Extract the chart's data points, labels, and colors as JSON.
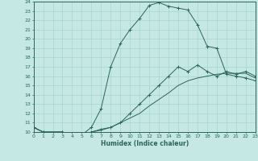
{
  "xlabel": "Humidex (Indice chaleur)",
  "bg_color": "#c5e8e5",
  "line_color": "#2a6655",
  "grid_color": "#a8d4d0",
  "xlim": [
    0,
    23
  ],
  "ylim": [
    10,
    24
  ],
  "xticks": [
    0,
    1,
    2,
    3,
    4,
    5,
    6,
    7,
    8,
    9,
    10,
    11,
    12,
    13,
    14,
    15,
    16,
    17,
    18,
    19,
    20,
    21,
    22,
    23
  ],
  "yticks": [
    10,
    11,
    12,
    13,
    14,
    15,
    16,
    17,
    18,
    19,
    20,
    21,
    22,
    23,
    24
  ],
  "curve1_x": [
    0,
    1,
    3,
    4,
    5,
    6,
    7,
    8,
    9,
    10,
    11,
    12,
    13,
    14,
    15,
    16,
    17,
    18,
    19,
    20,
    21,
    22,
    23
  ],
  "curve1_y": [
    10.5,
    10.0,
    10.0,
    9.7,
    9.7,
    10.5,
    12.5,
    17.0,
    19.5,
    21.0,
    22.2,
    23.6,
    23.9,
    23.5,
    23.3,
    23.1,
    21.5,
    19.2,
    19.0,
    16.2,
    16.0,
    15.8,
    15.5
  ],
  "curve2_x": [
    0,
    1,
    3,
    4,
    5,
    6,
    7,
    8,
    9,
    10,
    11,
    12,
    13,
    14,
    15,
    16,
    17,
    18,
    19,
    20,
    21,
    22,
    23
  ],
  "curve2_y": [
    10.5,
    10.0,
    10.0,
    9.7,
    9.7,
    10.0,
    10.3,
    10.5,
    11.0,
    12.0,
    13.0,
    14.0,
    15.0,
    16.0,
    17.0,
    16.5,
    17.2,
    16.5,
    16.0,
    16.5,
    16.2,
    16.5,
    16.0
  ],
  "curve3_x": [
    0,
    1,
    3,
    4,
    5,
    6,
    7,
    8,
    9,
    10,
    11,
    12,
    13,
    14,
    15,
    16,
    17,
    18,
    19,
    20,
    21,
    22,
    23
  ],
  "curve3_y": [
    10.5,
    10.0,
    10.0,
    9.7,
    9.7,
    10.0,
    10.2,
    10.5,
    11.0,
    11.5,
    12.0,
    12.8,
    13.5,
    14.2,
    15.0,
    15.5,
    15.8,
    16.0,
    16.2,
    16.3,
    16.3,
    16.3,
    15.8
  ]
}
